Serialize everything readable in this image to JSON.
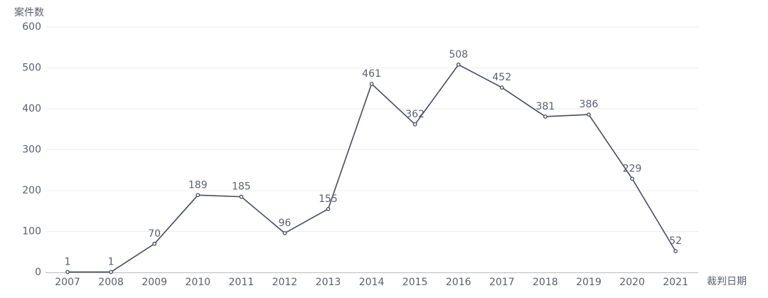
{
  "chart_data": {
    "type": "line",
    "y_label": "案件数",
    "x_label": "裁判日期",
    "categories": [
      "2007",
      "2008",
      "2009",
      "2010",
      "2011",
      "2012",
      "2013",
      "2014",
      "2015",
      "2016",
      "2017",
      "2018",
      "2019",
      "2020",
      "2021"
    ],
    "values": [
      1,
      1,
      70,
      189,
      185,
      96,
      155,
      461,
      362,
      508,
      452,
      381,
      386,
      229,
      52
    ],
    "color": "#474b61",
    "ylim": [
      0,
      600
    ],
    "yticks": [
      0,
      100,
      200,
      300,
      400,
      500,
      600
    ],
    "grid": true
  }
}
